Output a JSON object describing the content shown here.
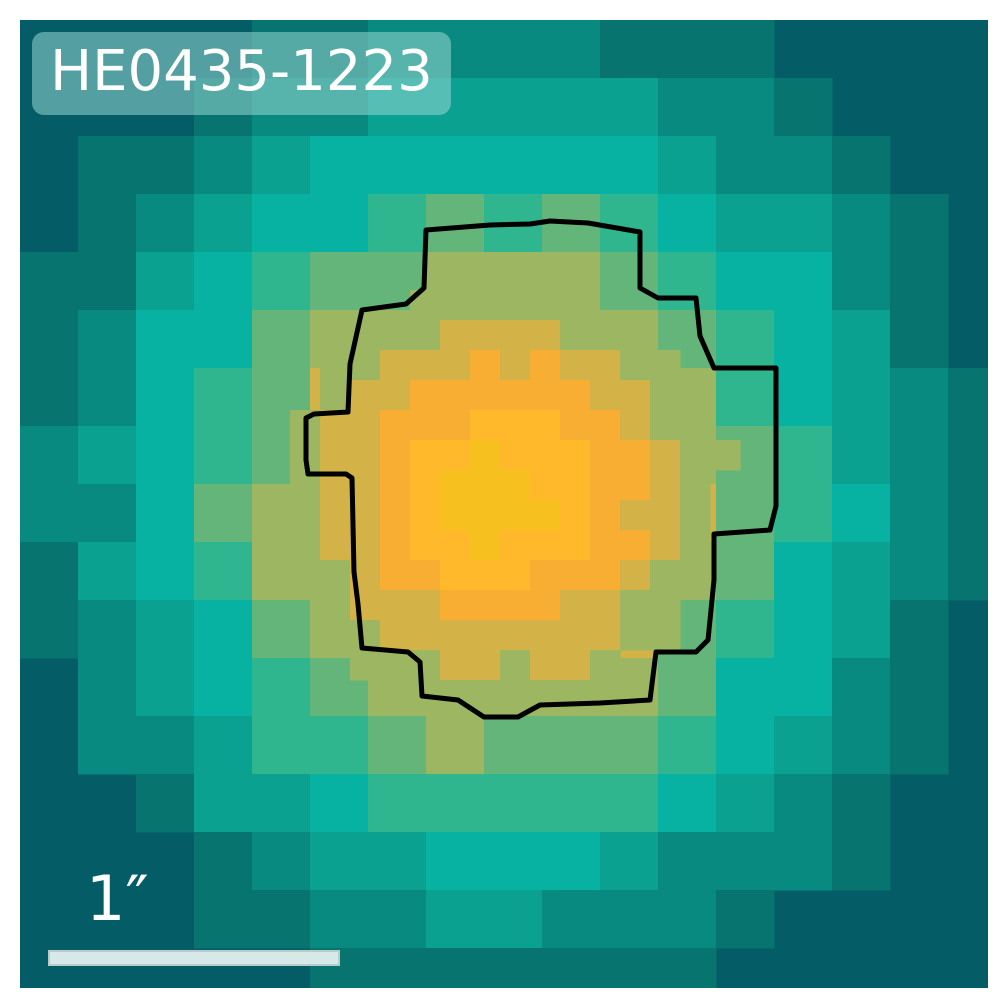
{
  "object_name": "HE0435-1223",
  "scale_bar": {
    "label": "1″"
  },
  "colors": {
    "background": "#035c66",
    "levels": [
      "#07746f",
      "#098a80",
      "#0aa191",
      "#08b2a2",
      "#30b68f",
      "#64b57a",
      "#9cb662",
      "#d3b347",
      "#f8ad33",
      "#ffb92a",
      "#f6c11f"
    ],
    "contour": "#000000"
  }
}
